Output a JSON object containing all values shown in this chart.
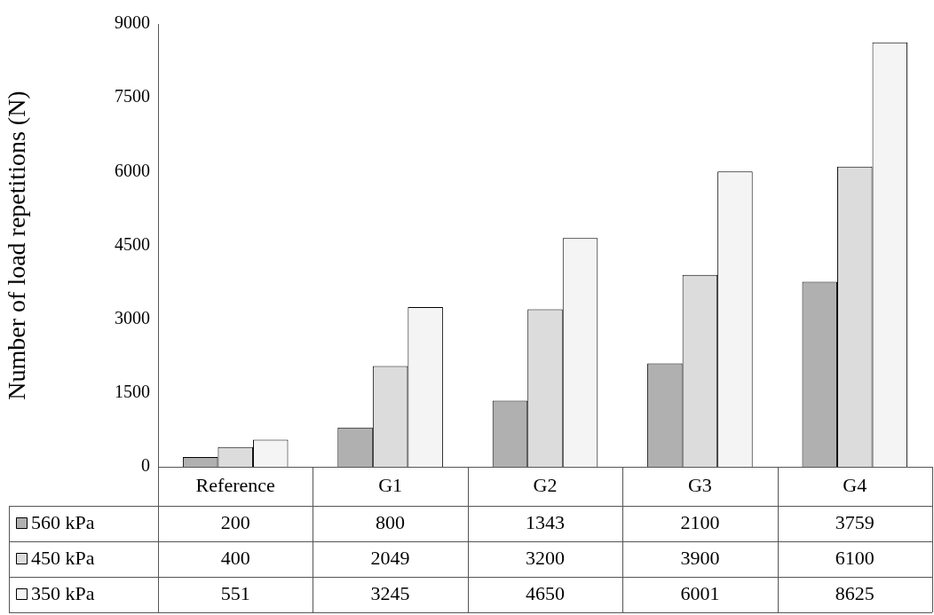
{
  "chart_data": {
    "type": "bar",
    "ylabel": "Number of load repetitions (N)",
    "categories": [
      "Reference",
      "G1",
      "G2",
      "G3",
      "G4"
    ],
    "series": [
      {
        "name": "560 kPa",
        "color": "#b0b0b0",
        "values": [
          200,
          800,
          1343,
          2100,
          3759
        ]
      },
      {
        "name": "450 kPa",
        "color": "#dcdcdc",
        "values": [
          400,
          2049,
          3200,
          3900,
          6100
        ]
      },
      {
        "name": "350 kPa",
        "color": "#f4f4f4",
        "values": [
          551,
          3245,
          4650,
          6001,
          8625
        ]
      }
    ],
    "ylim": [
      0,
      9000
    ],
    "yticks": [
      0,
      1500,
      3000,
      4500,
      6000,
      7500,
      9000
    ],
    "grid": false,
    "legend": "bottom left",
    "data_labels": true
  }
}
